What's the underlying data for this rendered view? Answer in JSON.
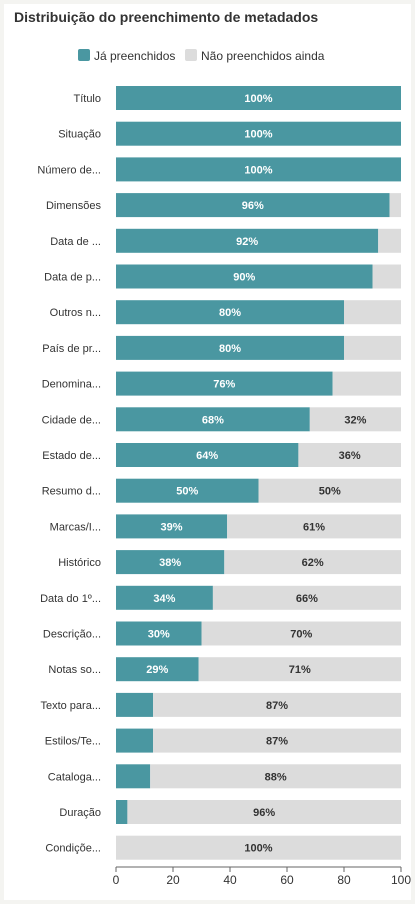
{
  "title": "Distribuição do preenchimento de metadados",
  "colors": {
    "filled": "#4a97a1",
    "not_filled": "#dcdcdc",
    "label_on_filled": "#ffffff",
    "label_on_empty": "#333333",
    "axis_text": "#333333"
  },
  "chart_data": {
    "type": "bar",
    "orientation": "horizontal",
    "stacked": true,
    "categories": [
      "Título",
      "Situação",
      "Número de...",
      "Dimensões",
      "Data de ...",
      "Data de p...",
      "Outros n...",
      "País de pr...",
      "Denomina...",
      "Cidade de...",
      "Estado de...",
      "Resumo d...",
      "Marcas/I...",
      "Histórico",
      "Data do 1º...",
      "Descrição...",
      "Notas so...",
      "Texto para...",
      "Estilos/Te...",
      "Cataloga...",
      "Duração",
      "Condiçõe..."
    ],
    "series": [
      {
        "name": "Já preenchidos",
        "values": [
          100,
          100,
          100,
          96,
          92,
          90,
          80,
          80,
          76,
          68,
          64,
          50,
          39,
          38,
          34,
          30,
          29,
          13,
          13,
          12,
          4,
          0
        ]
      },
      {
        "name": "Não preenchidos ainda",
        "values": [
          0,
          0,
          0,
          4,
          8,
          10,
          20,
          20,
          24,
          32,
          36,
          50,
          61,
          62,
          66,
          70,
          71,
          87,
          87,
          88,
          96,
          100
        ]
      }
    ],
    "data_labels": {
      "filled": [
        "100%",
        "100%",
        "100%",
        "96%",
        "92%",
        "90%",
        "80%",
        "80%",
        "76%",
        "68%",
        "64%",
        "50%",
        "39%",
        "38%",
        "34%",
        "30%",
        "29%",
        "",
        "",
        "",
        "",
        ""
      ],
      "not_filled": [
        "",
        "",
        "",
        "",
        "",
        "",
        "",
        "",
        "",
        "32%",
        "36%",
        "50%",
        "61%",
        "62%",
        "66%",
        "70%",
        "71%",
        "87%",
        "87%",
        "88%",
        "96%",
        "100%"
      ]
    },
    "xlim": [
      0,
      100
    ],
    "xticks": [
      "0",
      "20",
      "40",
      "60",
      "80",
      "100"
    ],
    "legend_position": "top-center",
    "grid": false
  }
}
